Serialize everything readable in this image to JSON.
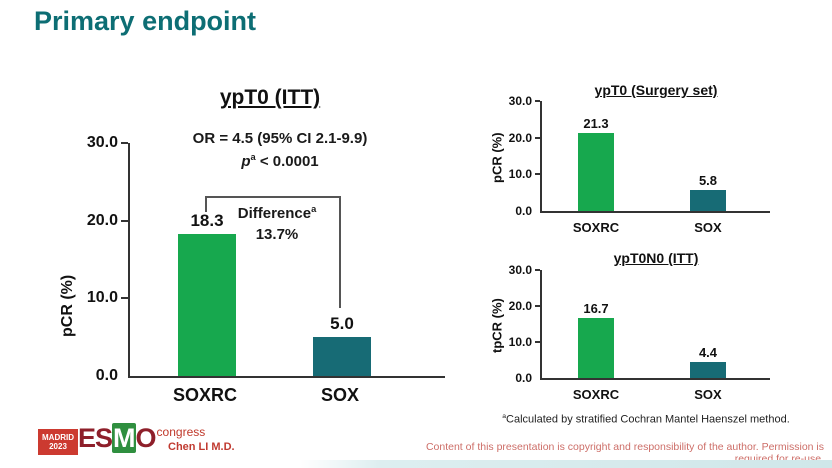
{
  "slide": {
    "title": "Primary endpoint",
    "presenter": "Chen LI M.D.",
    "footnote_sup": "a",
    "footnote_text": "Calculated by stratified Cochran Mantel Haenszel method.",
    "copyright": "Content of this presentation is copyright and responsibility of the author. Permission is required for re-use.",
    "logo": {
      "venue": "MADRID",
      "year": "2023",
      "org_e": "ES",
      "org_m": "M",
      "org_o": "O",
      "suffix": "congress"
    },
    "colors": {
      "title_teal": "#0d6e74",
      "bar_green": "#17a84e",
      "bar_teal": "#176b75",
      "red_text": "#c03a30"
    }
  },
  "chart_data": [
    {
      "id": "main-ypt0-itt",
      "type": "bar",
      "title": "ypT0 (ITT)",
      "ylabel": "pCR (%)",
      "ylim": [
        0,
        30
      ],
      "yticks": [
        "30.0",
        "20.0",
        "10.0",
        "0.0"
      ],
      "categories": [
        "SOXRC",
        "SOX"
      ],
      "values": [
        18.3,
        5.0
      ],
      "value_labels": [
        "18.3",
        "5.0"
      ],
      "bar_colors": [
        "#17a84e",
        "#176b75"
      ],
      "grid": false,
      "annotations": {
        "or_line": "OR = 4.5 (95% CI 2.1-9.9)",
        "p_italic": "p",
        "p_sup": "a",
        "p_tail": " < 0.0001",
        "diff_label": "Difference",
        "diff_sup": "a",
        "diff_value": "13.7%"
      }
    },
    {
      "id": "ypt0-surgery-set",
      "type": "bar",
      "title": "ypT0 (Surgery set)",
      "ylabel": "pCR (%)",
      "ylim": [
        0,
        30
      ],
      "yticks": [
        "30.0",
        "20.0",
        "10.0",
        "0.0"
      ],
      "categories": [
        "SOXRC",
        "SOX"
      ],
      "values": [
        21.3,
        5.8
      ],
      "value_labels": [
        "21.3",
        "5.8"
      ],
      "bar_colors": [
        "#17a84e",
        "#176b75"
      ],
      "grid": false
    },
    {
      "id": "ypt0n0-itt",
      "type": "bar",
      "title": "ypT0N0 (ITT)",
      "ylabel": "tpCR (%)",
      "ylim": [
        0,
        30
      ],
      "yticks": [
        "30.0",
        "20.0",
        "10.0",
        "0.0"
      ],
      "categories": [
        "SOXRC",
        "SOX"
      ],
      "values": [
        16.7,
        4.4
      ],
      "value_labels": [
        "16.7",
        "4.4"
      ],
      "bar_colors": [
        "#17a84e",
        "#176b75"
      ],
      "grid": false
    }
  ]
}
